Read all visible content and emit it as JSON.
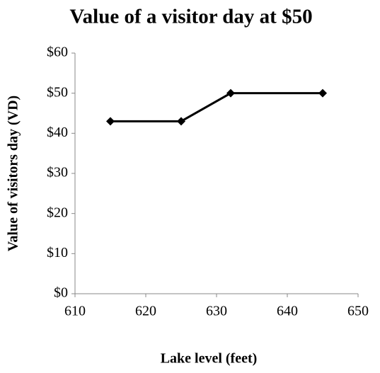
{
  "chart_data": {
    "type": "line",
    "title": "Value of a visitor day at $50",
    "x_label": "Lake level (feet)",
    "y_label": "Value of visitors day (VD)",
    "x": [
      615,
      625,
      632,
      645
    ],
    "series": [
      {
        "color": "#000000",
        "values": [
          43,
          43,
          50,
          50
        ]
      }
    ],
    "xlim": [
      610,
      650
    ],
    "xticks": [
      610,
      620,
      630,
      640,
      650
    ],
    "ylim": [
      0,
      60
    ],
    "yticks": [
      {
        "value": 0,
        "label": "$0"
      },
      {
        "value": 10,
        "label": "$10"
      },
      {
        "value": 20,
        "label": "$20"
      },
      {
        "value": 30,
        "label": "$30"
      },
      {
        "value": 40,
        "label": "$40"
      },
      {
        "value": 50,
        "label": "$50"
      },
      {
        "value": 60,
        "label": "$60"
      }
    ],
    "grid": false
  }
}
